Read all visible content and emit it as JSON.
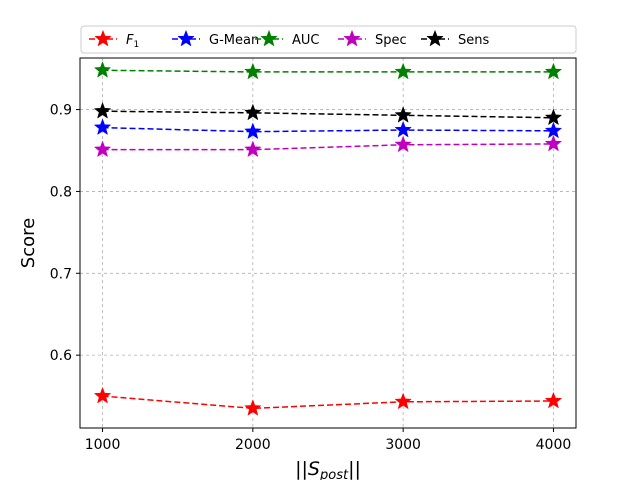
{
  "chart_data": {
    "type": "line",
    "title": "",
    "xlabel": "||S_post||",
    "ylabel": "Score",
    "x": [
      1000,
      2000,
      3000,
      4000
    ],
    "xticks": [
      1000,
      2000,
      3000,
      4000
    ],
    "xtick_labels": [
      "1000",
      "2000",
      "3000",
      "4000"
    ],
    "xlim": [
      850,
      4150
    ],
    "yticks": [
      0.6,
      0.7,
      0.8,
      0.9
    ],
    "ytick_labels": [
      "0.6",
      "0.7",
      "0.8",
      "0.9"
    ],
    "ylim": [
      0.511,
      0.963
    ],
    "grid": true,
    "legend_position": "top, outside plot",
    "series": [
      {
        "name": "F1",
        "color": "#ff0000",
        "values": [
          0.55,
          0.535,
          0.543,
          0.544
        ]
      },
      {
        "name": "G-Mean",
        "color": "#0000ff",
        "values": [
          0.878,
          0.873,
          0.875,
          0.874
        ]
      },
      {
        "name": "AUC",
        "color": "#008000",
        "values": [
          0.948,
          0.946,
          0.946,
          0.946
        ]
      },
      {
        "name": "Spec",
        "color": "#bf00bf",
        "values": [
          0.851,
          0.851,
          0.857,
          0.858
        ]
      },
      {
        "name": "Sens",
        "color": "#000000",
        "values": [
          0.898,
          0.896,
          0.893,
          0.89
        ]
      }
    ]
  }
}
